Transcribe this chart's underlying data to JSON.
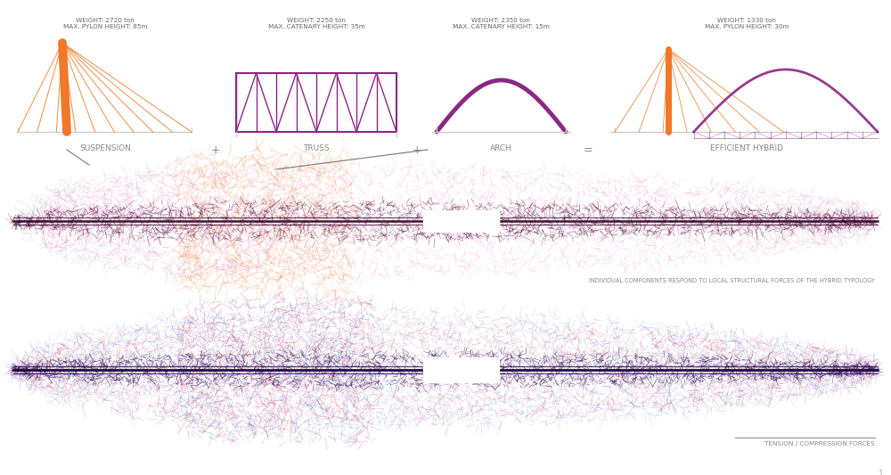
{
  "bg_color": "#ffffff",
  "orange": "#f07828",
  "purple": "#8b2882",
  "dark_purple": "#3a0830",
  "pink": "#e040a0",
  "magenta": "#cc3388",
  "gray": "#aaaaaa",
  "text_color": "#666666",
  "label_color": "#888888",
  "suspension_label": "SUSPENSION",
  "truss_label": "TRUSS",
  "arch_label": "ARCH",
  "hybrid_label": "EFFICIENT HYBRID",
  "caption1": "INDIVIDUAL COMPONENTS RESPOND TO LOCAL STRUCTURAL FORCES OF THE HYBRID TYPOLOGY",
  "caption2": "TENSION / COMPRESSION FORCES",
  "w1": "WEIGHT: 2720 ton\nMAX. PYLON HEIGHT: 85m",
  "w2": "WEIGHT: 2250 ton\nMAX. CATENARY HEIGHT: 35m",
  "w3": "WEIGHT: 2350 ton\nMAX. CATENARY HEIGHT: 15m",
  "w4": "WEIGHT: 1330 ton\nMAX. PYLON HEIGHT: 30m"
}
